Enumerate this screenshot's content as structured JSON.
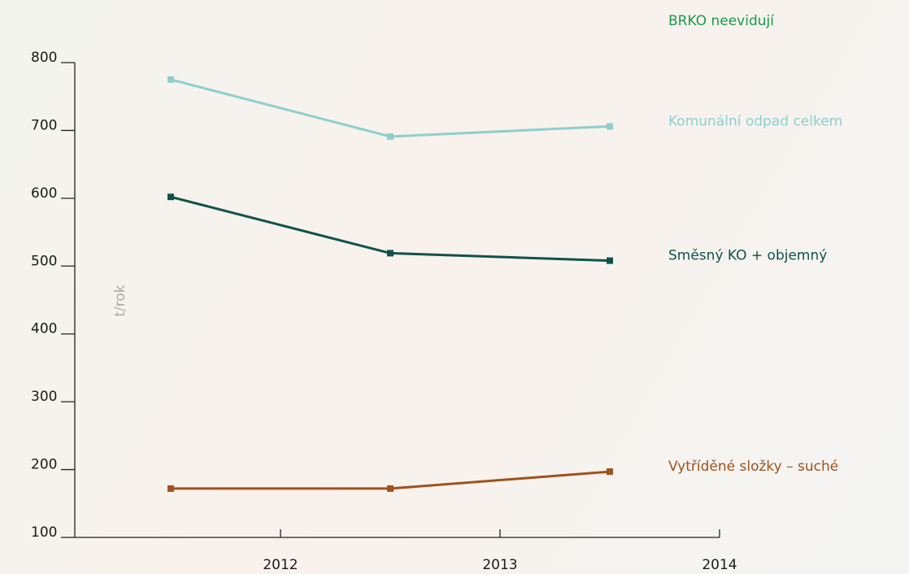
{
  "chart_data": {
    "type": "line",
    "annotation": "BRKO neevidují",
    "y_label": "t/rok",
    "categories": [
      "2012",
      "2013",
      "2014"
    ],
    "series": [
      {
        "name": "Komunální odpad celkem",
        "color": "#8ecfcc",
        "values": [
          775,
          691,
          706
        ]
      },
      {
        "name": "Směsný KO + objemný",
        "color": "#0f5249",
        "values": [
          602,
          519,
          508
        ]
      },
      {
        "name": "Vytříděné složky – suché",
        "color": "#a0521c",
        "values": [
          172,
          172,
          197
        ]
      }
    ],
    "ylim": [
      100,
      800
    ],
    "yticks": [
      100,
      200,
      300,
      400,
      500,
      600,
      700,
      800
    ]
  }
}
